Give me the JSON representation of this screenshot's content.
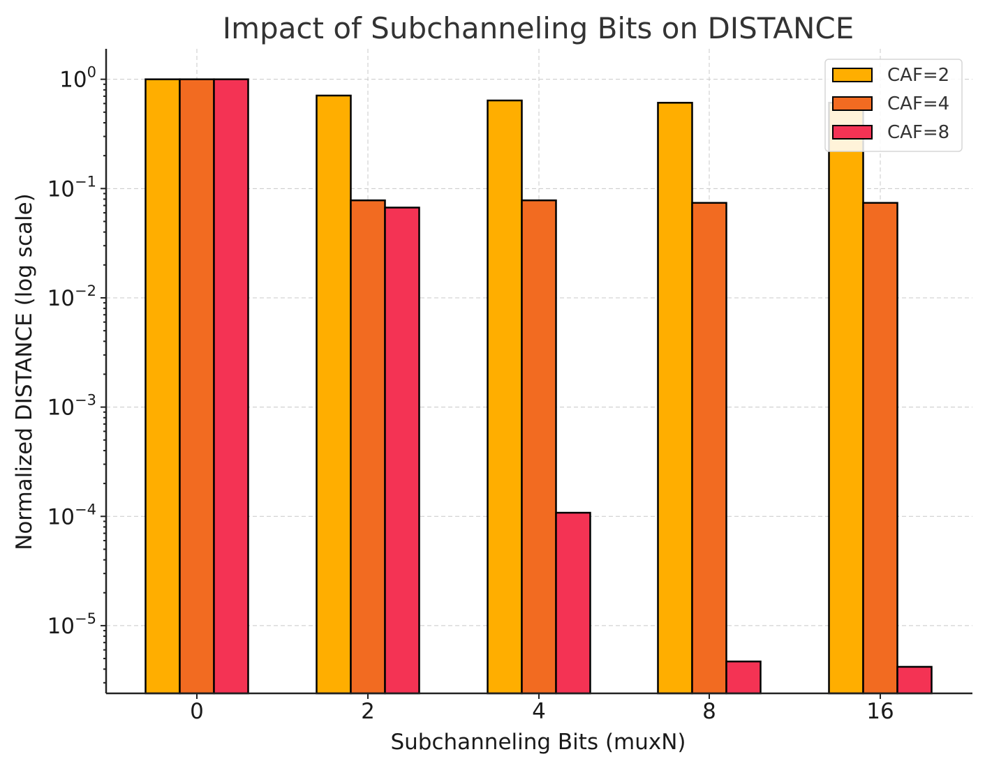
{
  "chart_data": {
    "type": "bar",
    "title": "Impact of Subchanneling Bits on DISTANCE",
    "xlabel": "Subchanneling Bits (muxN)",
    "ylabel": "Normalized DISTANCE (log scale)",
    "yscale": "log",
    "ylim": [
      2.4e-06,
      1.9
    ],
    "yticks": [
      {
        "value": 1,
        "base": "10",
        "exp": "0"
      },
      {
        "value": 0.1,
        "base": "10",
        "exp": "−1"
      },
      {
        "value": 0.01,
        "base": "10",
        "exp": "−2"
      },
      {
        "value": 0.001,
        "base": "10",
        "exp": "−3"
      },
      {
        "value": 0.0001,
        "base": "10",
        "exp": "−4"
      },
      {
        "value": 1e-05,
        "base": "10",
        "exp": "−5"
      }
    ],
    "categories": [
      "0",
      "2",
      "4",
      "8",
      "16"
    ],
    "series": [
      {
        "name": "CAF=2",
        "color": "#FFAE00",
        "values": [
          1.0,
          0.71,
          0.64,
          0.61,
          0.61
        ]
      },
      {
        "name": "CAF=4",
        "color": "#F26B21",
        "values": [
          1.0,
          0.078,
          0.078,
          0.074,
          0.074
        ]
      },
      {
        "name": "CAF=8",
        "color": "#F43354",
        "values": [
          1.0,
          0.067,
          0.000108,
          4.7e-06,
          4.2e-06
        ]
      }
    ],
    "grid": true,
    "legend_position": "top-right"
  }
}
